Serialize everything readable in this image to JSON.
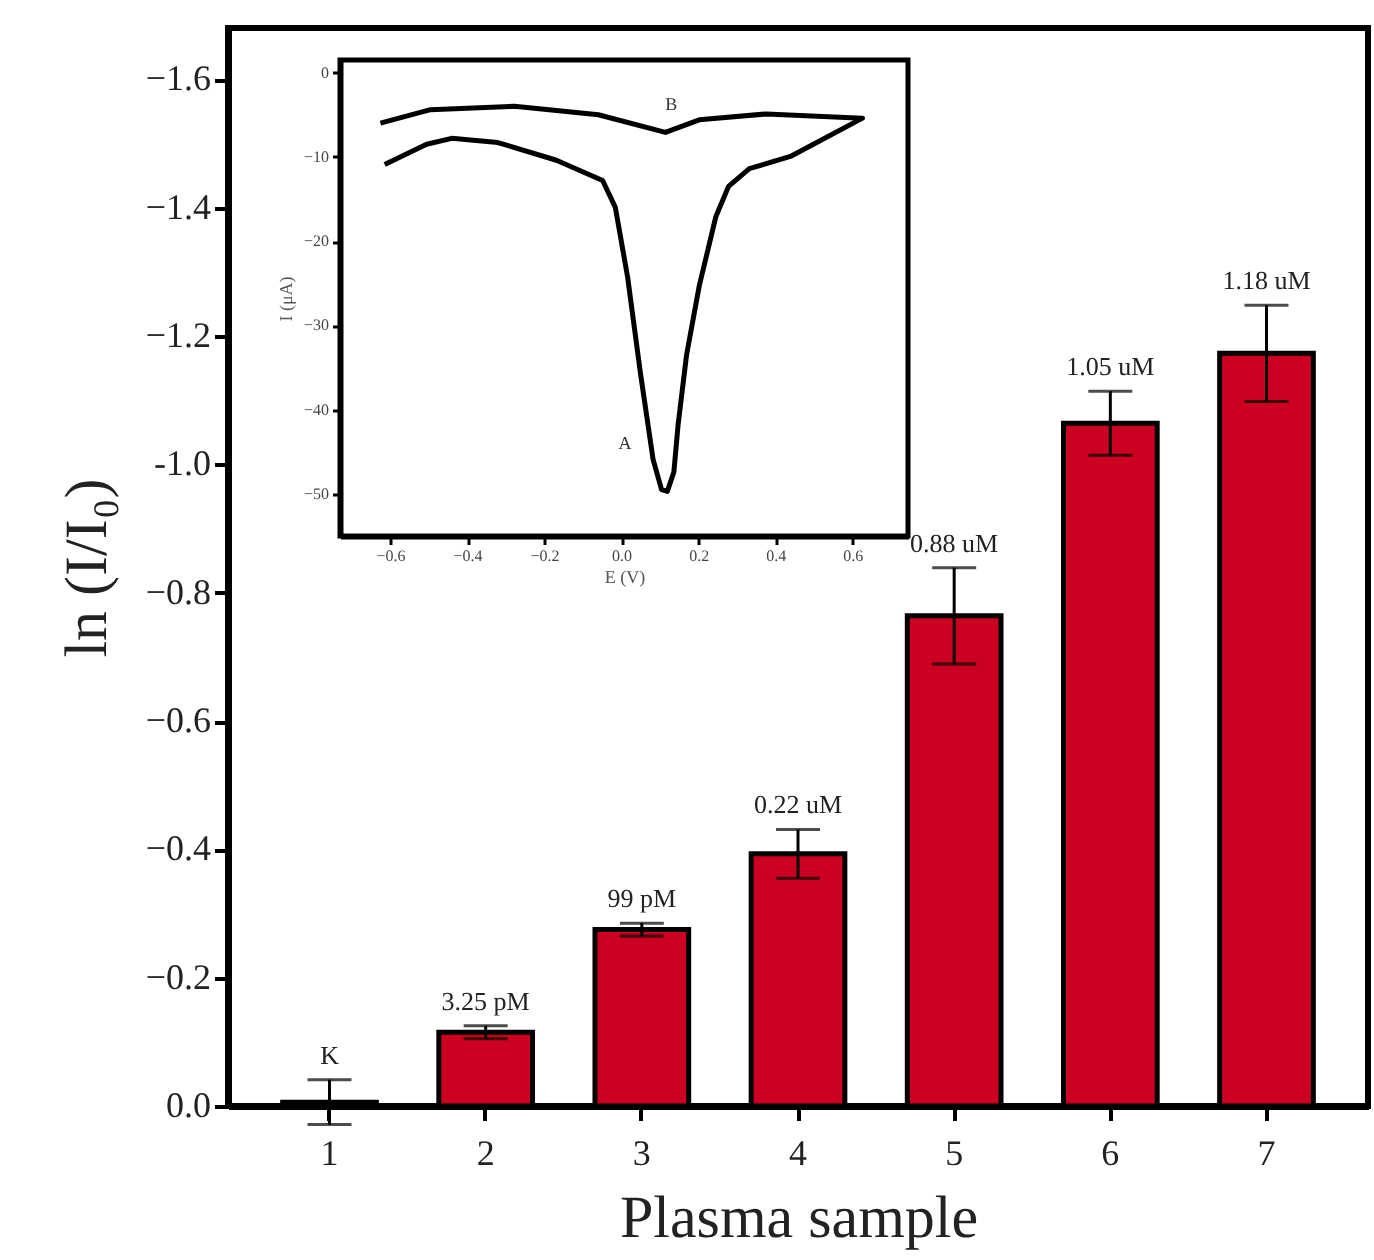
{
  "chart_data": [
    {
      "type": "bar",
      "xlabel": "Plasma sample",
      "ylabel": "ln (I/I₀)",
      "categories": [
        "1",
        "2",
        "3",
        "4",
        "5",
        "6",
        "7"
      ],
      "values": [
        -0.006,
        -0.115,
        -0.275,
        -0.393,
        -0.764,
        -1.064,
        -1.173
      ],
      "errors": [
        0.035,
        0.01,
        0.01,
        0.038,
        0.075,
        0.05,
        0.075
      ],
      "annotations": [
        {
          "text": "K",
          "x": "1",
          "y": -0.041
        },
        {
          "text": "3.25 pM",
          "x": "2",
          "y": -0.125
        },
        {
          "text": "99 pM",
          "x": "3",
          "y": -0.285
        },
        {
          "text": "0.22 uM",
          "x": "4",
          "y": -0.431
        },
        {
          "text": "0.88 uM",
          "x": "5",
          "y": -0.839
        },
        {
          "text": "1.05 uM",
          "x": "6",
          "y": -1.114
        },
        {
          "text": "1.18 uM",
          "x": "7",
          "y": -1.248
        }
      ],
      "color": "#cc0020",
      "ylim": [
        0,
        -1.68
      ],
      "yticks": [
        {
          "value": 0,
          "label": "0.0"
        },
        -0.2,
        -0.4,
        -0.6,
        -0.8,
        {
          "value": -1,
          "label": "-1.0"
        },
        -1.2,
        -1.4,
        -1.6
      ]
    },
    {
      "type": "line",
      "xlabel": "E (V)",
      "ylabel": "I (μA)",
      "color": "#000000",
      "x": [
        -0.625,
        -0.495,
        -0.277,
        -0.059,
        0.115,
        0.203,
        0.377,
        0.627,
        0.442,
        0.333,
        0.279,
        0.246,
        0.203,
        0.17,
        0.148,
        0.137,
        0.12,
        0.105,
        0.083,
        0.05,
        0.017,
        -0.015,
        -0.048,
        -0.168,
        -0.32,
        -0.44,
        -0.505,
        -0.614
      ],
      "values": [
        -6.0,
        -4.4,
        -4.0,
        -5.0,
        -7.1,
        -5.6,
        -4.9,
        -5.4,
        -9.9,
        -11.4,
        -13.5,
        -17.1,
        -25.3,
        -33.5,
        -41.8,
        -47.4,
        -49.7,
        -49.5,
        -45.9,
        -35.6,
        -24.3,
        -16.0,
        -12.8,
        -10.4,
        -8.3,
        -7.8,
        -8.5,
        -10.9
      ],
      "xlim": [
        -0.73,
        0.745
      ],
      "ylim": [
        -55,
        1.5
      ],
      "xticks": [
        -0.6,
        -0.4,
        -0.2,
        {
          "value": 0,
          "label": "0.0"
        },
        0.2,
        0.4,
        0.6
      ],
      "yticks": [
        0,
        -10,
        -20,
        -30,
        -40,
        -50
      ],
      "annotations": [
        {
          "text": "A",
          "x": 0.083,
          "y": -45.9
        },
        {
          "text": "B",
          "x": 0.203,
          "y": -5.6
        }
      ]
    }
  ]
}
